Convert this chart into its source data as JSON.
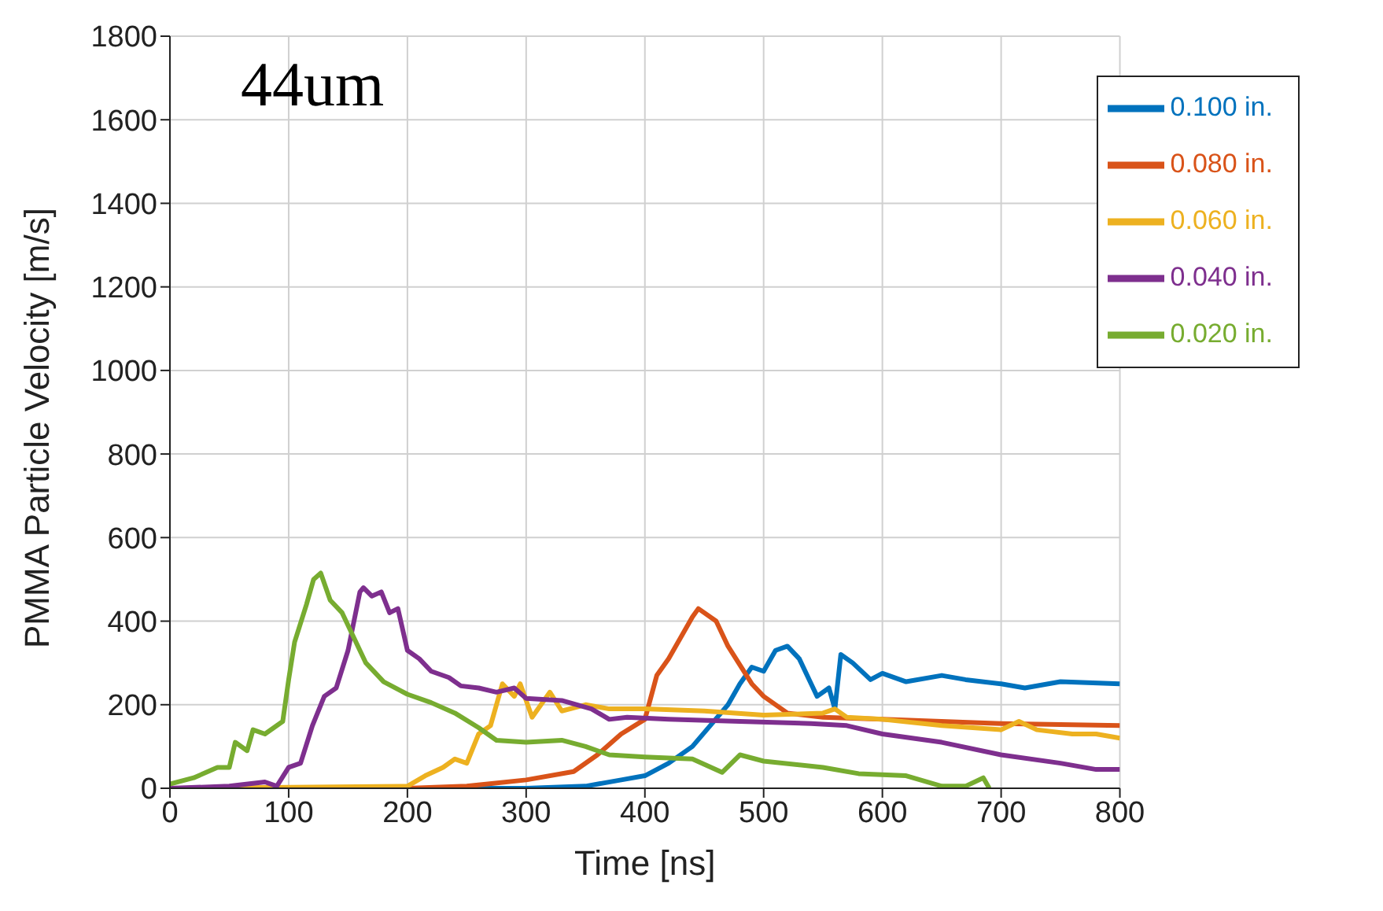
{
  "chart_data": {
    "type": "line",
    "xlabel": "Time [ns]",
    "ylabel": "PMMA Particle Velocity [m/s]",
    "annotations": [
      "44um"
    ],
    "xlim": [
      0,
      800
    ],
    "xticks": [
      0,
      100,
      200,
      300,
      400,
      500,
      600,
      700,
      800
    ],
    "ylim": [
      0,
      1800
    ],
    "yticks": [
      0,
      200,
      400,
      600,
      800,
      1000,
      1200,
      1400,
      1600,
      1800
    ],
    "grid": true,
    "legend": "top right",
    "marker": "none",
    "line_style": "solid",
    "series": [
      {
        "name": "0.100 in.",
        "color": "#0072bd",
        "x": [
          0,
          300,
          350,
          380,
          400,
          420,
          440,
          455,
          470,
          480,
          490,
          500,
          510,
          520,
          530,
          540,
          545,
          555,
          560,
          565,
          575,
          590,
          600,
          620,
          650,
          670,
          700,
          720,
          750,
          800
        ],
        "values": [
          0,
          0,
          5,
          20,
          30,
          60,
          100,
          150,
          200,
          250,
          290,
          280,
          330,
          340,
          310,
          250,
          220,
          240,
          190,
          320,
          300,
          260,
          275,
          255,
          270,
          260,
          250,
          240,
          255,
          250
        ]
      },
      {
        "name": "0.080 in.",
        "color": "#d95319",
        "x": [
          0,
          200,
          250,
          300,
          340,
          360,
          380,
          400,
          410,
          420,
          440,
          445,
          460,
          470,
          490,
          500,
          520,
          550,
          600,
          700,
          800
        ],
        "values": [
          0,
          0,
          5,
          20,
          40,
          80,
          130,
          165,
          270,
          310,
          410,
          430,
          400,
          340,
          250,
          220,
          180,
          170,
          165,
          155,
          150
        ]
      },
      {
        "name": "0.060 in.",
        "color": "#edb120",
        "x": [
          0,
          200,
          215,
          230,
          240,
          250,
          260,
          270,
          280,
          290,
          295,
          305,
          320,
          330,
          350,
          370,
          400,
          450,
          500,
          550,
          560,
          570,
          600,
          650,
          700,
          715,
          730,
          760,
          780,
          800
        ],
        "values": [
          0,
          5,
          30,
          50,
          70,
          60,
          130,
          150,
          250,
          220,
          250,
          170,
          230,
          185,
          200,
          190,
          190,
          185,
          175,
          180,
          190,
          170,
          165,
          150,
          140,
          160,
          140,
          130,
          130,
          120
        ]
      },
      {
        "name": "0.040 in.",
        "color": "#7e2f8e",
        "x": [
          0,
          50,
          80,
          90,
          100,
          110,
          120,
          130,
          140,
          150,
          160,
          163,
          170,
          178,
          185,
          192,
          200,
          210,
          220,
          235,
          245,
          260,
          275,
          290,
          300,
          330,
          355,
          370,
          385,
          420,
          480,
          540,
          570,
          600,
          650,
          700,
          750,
          780,
          800
        ],
        "values": [
          0,
          5,
          15,
          5,
          50,
          60,
          150,
          220,
          240,
          330,
          470,
          480,
          460,
          470,
          420,
          430,
          330,
          310,
          280,
          265,
          245,
          240,
          230,
          240,
          215,
          210,
          190,
          165,
          170,
          165,
          160,
          155,
          150,
          130,
          110,
          80,
          60,
          45,
          45
        ]
      },
      {
        "name": "0.020 in.",
        "color": "#77ac30",
        "x": [
          0,
          20,
          40,
          50,
          55,
          65,
          70,
          80,
          95,
          100,
          105,
          115,
          121,
          127,
          135,
          145,
          165,
          180,
          200,
          220,
          240,
          260,
          275,
          300,
          330,
          350,
          370,
          400,
          440,
          465,
          480,
          500,
          550,
          580,
          620,
          650,
          670,
          685,
          690
        ],
        "values": [
          10,
          25,
          50,
          50,
          110,
          90,
          140,
          130,
          160,
          260,
          350,
          440,
          500,
          515,
          450,
          420,
          300,
          255,
          225,
          205,
          180,
          145,
          115,
          110,
          115,
          100,
          80,
          75,
          70,
          38,
          80,
          65,
          50,
          35,
          30,
          5,
          5,
          25,
          0
        ]
      }
    ]
  }
}
